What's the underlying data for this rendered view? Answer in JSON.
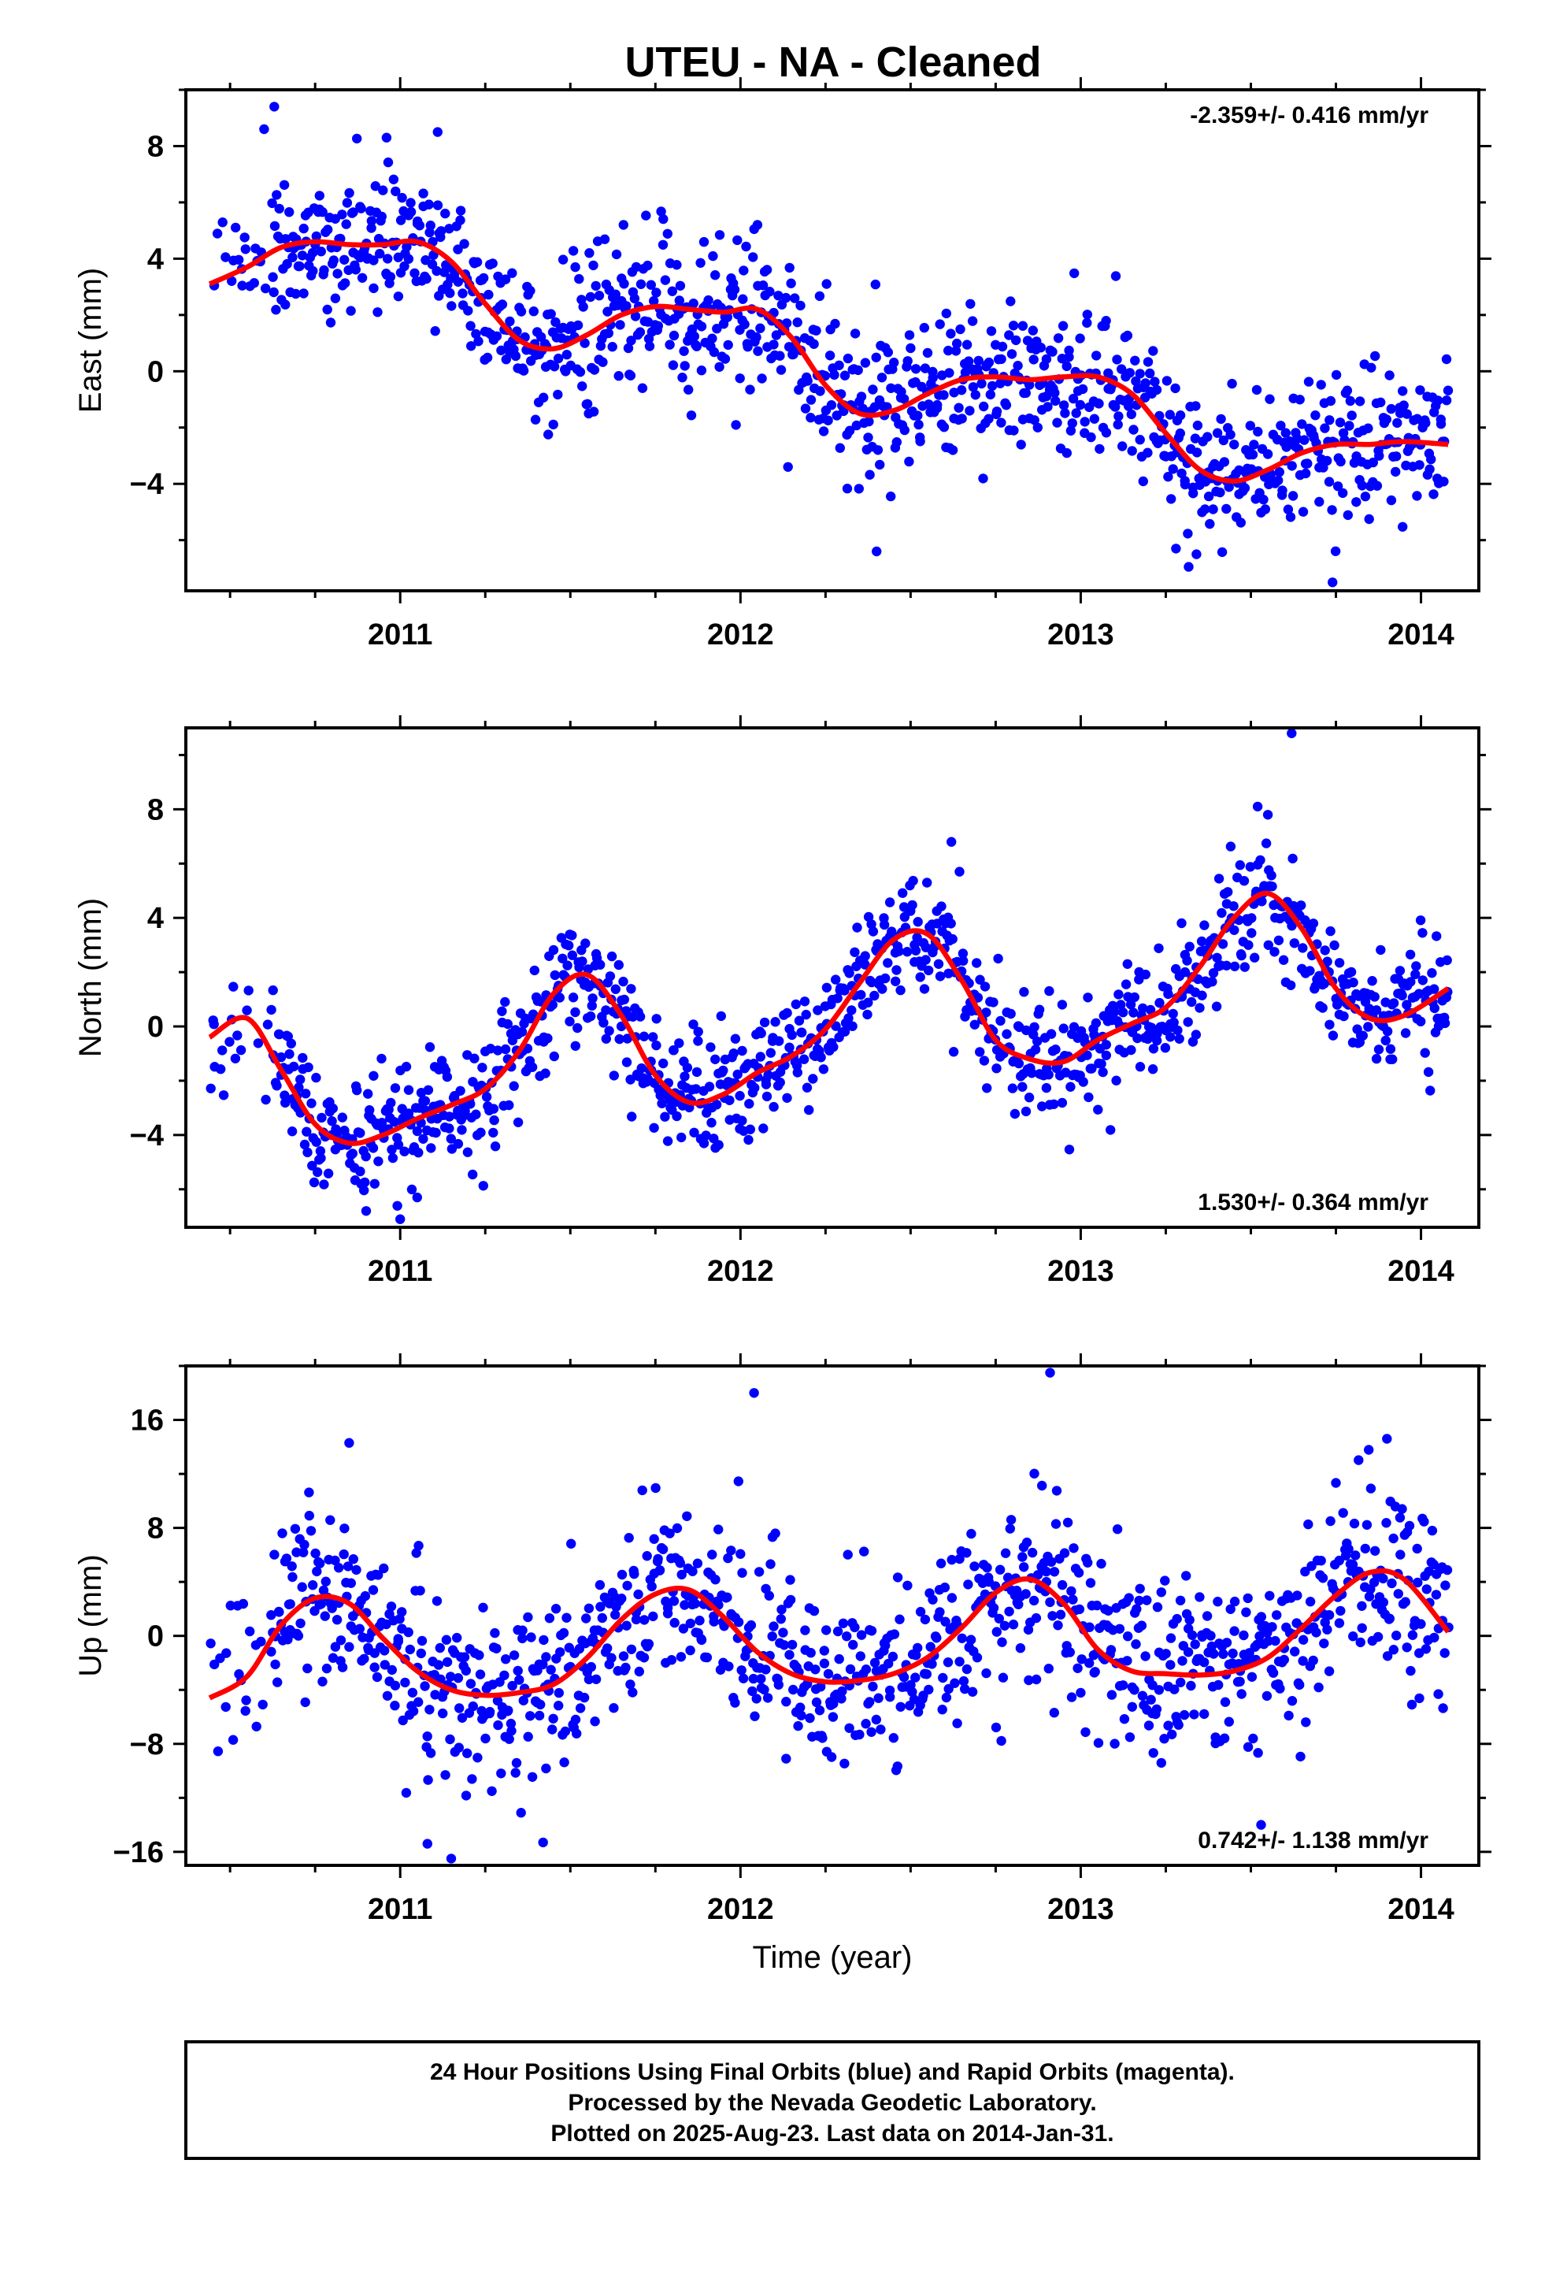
{
  "figure": {
    "title": "UTEU  - NA - Cleaned",
    "footer": [
      "24 Hour Positions Using Final Orbits (blue) and Rapid Orbits (magenta).",
      "Processed by the Nevada Geodetic Laboratory.",
      "Plotted on 2025-Aug-23. Last data on 2014-Jan-31."
    ],
    "colors": {
      "points": "#0000ff",
      "fit": "#ff0000",
      "frame": "#000000"
    }
  },
  "chart_data": [
    {
      "type": "scatter",
      "ylabel": "East (mm)",
      "xlabel": "",
      "xlim": [
        2010.37,
        2014.17
      ],
      "ylim": [
        -7.8,
        10.0
      ],
      "xticks": [
        2011,
        2012,
        2013,
        2014
      ],
      "yticks": [
        -4,
        0,
        4,
        8
      ],
      "rate_label": "-2.359+/- 0.416 mm/yr",
      "rate_position": "top-right",
      "data_range": [
        2010.44,
        2014.08
      ],
      "point_count": 1100,
      "scatter_sd": 1.3,
      "outliers": [
        [
          2010.63,
          9.4
        ],
        [
          2010.6,
          8.6
        ],
        [
          2011.11,
          8.5
        ],
        [
          2010.96,
          8.3
        ],
        [
          2012.05,
          5.2
        ],
        [
          2013.74,
          -7.5
        ],
        [
          2013.34,
          -6.5
        ],
        [
          2012.4,
          -6.4
        ],
        [
          2013.28,
          -6.3
        ]
      ],
      "fit_curve": {
        "x": [
          2010.44,
          2010.55,
          2010.65,
          2010.75,
          2010.85,
          2010.95,
          2011.05,
          2011.15,
          2011.25,
          2011.35,
          2011.45,
          2011.55,
          2011.65,
          2011.75,
          2011.85,
          2011.95,
          2012.05,
          2012.15,
          2012.25,
          2012.35,
          2012.45,
          2012.55,
          2012.65,
          2012.75,
          2012.85,
          2012.95,
          2013.05,
          2013.15,
          2013.25,
          2013.35,
          2013.45,
          2013.55,
          2013.65,
          2013.75,
          2013.85,
          2013.95,
          2014.08
        ],
        "y": [
          3.1,
          3.7,
          4.4,
          4.6,
          4.5,
          4.5,
          4.6,
          3.9,
          2.4,
          1.1,
          0.8,
          1.3,
          2.0,
          2.3,
          2.2,
          2.1,
          2.2,
          1.2,
          -0.5,
          -1.5,
          -1.4,
          -0.8,
          -0.3,
          -0.2,
          -0.3,
          -0.2,
          -0.2,
          -0.8,
          -2.2,
          -3.5,
          -3.9,
          -3.5,
          -2.9,
          -2.6,
          -2.6,
          -2.5,
          -2.6
        ]
      }
    },
    {
      "type": "scatter",
      "ylabel": "North (mm)",
      "xlabel": "",
      "xlim": [
        2010.37,
        2014.17
      ],
      "ylim": [
        -7.4,
        11.0
      ],
      "xticks": [
        2011,
        2012,
        2013,
        2014
      ],
      "yticks": [
        -4,
        0,
        4,
        8
      ],
      "rate_label": "1.530+/- 0.364 mm/yr",
      "rate_position": "bottom-right",
      "data_range": [
        2010.44,
        2014.08
      ],
      "point_count": 1100,
      "scatter_sd": 1.1,
      "outliers": [
        [
          2013.62,
          10.8
        ],
        [
          2013.52,
          8.1
        ],
        [
          2013.55,
          7.8
        ],
        [
          2011.0,
          -7.1
        ],
        [
          2010.9,
          -6.8
        ],
        [
          2012.62,
          6.8
        ],
        [
          2011.05,
          -6.3
        ]
      ],
      "fit_curve": {
        "x": [
          2010.44,
          2010.55,
          2010.65,
          2010.75,
          2010.85,
          2010.95,
          2011.05,
          2011.15,
          2011.25,
          2011.35,
          2011.45,
          2011.55,
          2011.65,
          2011.75,
          2011.85,
          2011.95,
          2012.05,
          2012.15,
          2012.25,
          2012.35,
          2012.45,
          2012.55,
          2012.65,
          2012.75,
          2012.85,
          2012.95,
          2013.05,
          2013.15,
          2013.25,
          2013.35,
          2013.45,
          2013.55,
          2013.65,
          2013.75,
          2013.85,
          2013.95,
          2014.08
        ],
        "y": [
          -0.4,
          0.3,
          -1.6,
          -3.6,
          -4.3,
          -4.0,
          -3.4,
          -2.9,
          -2.3,
          -0.9,
          1.2,
          1.9,
          0.4,
          -1.8,
          -2.8,
          -2.5,
          -1.7,
          -1.1,
          -0.1,
          1.6,
          3.2,
          3.4,
          1.7,
          -0.5,
          -1.2,
          -1.3,
          -0.5,
          0.1,
          0.7,
          2.2,
          4.0,
          4.9,
          3.6,
          1.4,
          0.3,
          0.4,
          1.4
        ]
      }
    },
    {
      "type": "scatter",
      "ylabel": "Up (mm)",
      "xlabel": "Time (year)",
      "xlim": [
        2010.37,
        2014.17
      ],
      "ylim": [
        -17.0,
        20.0
      ],
      "xticks": [
        2011,
        2012,
        2013,
        2014
      ],
      "yticks": [
        -16,
        -8,
        0,
        8,
        16
      ],
      "rate_label": "0.742+/- 1.138 mm/yr",
      "rate_position": "bottom-right",
      "data_range": [
        2010.44,
        2014.08
      ],
      "point_count": 1100,
      "scatter_sd": 3.4,
      "outliers": [
        [
          2012.91,
          19.5
        ],
        [
          2012.04,
          18.0
        ],
        [
          2011.15,
          -16.5
        ],
        [
          2011.08,
          -15.4
        ],
        [
          2013.53,
          -14.0
        ],
        [
          2010.85,
          14.3
        ],
        [
          2013.9,
          14.6
        ],
        [
          2011.42,
          -15.3
        ]
      ],
      "fit_curve": {
        "x": [
          2010.44,
          2010.55,
          2010.65,
          2010.75,
          2010.85,
          2010.95,
          2011.05,
          2011.15,
          2011.25,
          2011.35,
          2011.45,
          2011.55,
          2011.65,
          2011.75,
          2011.85,
          2011.95,
          2012.05,
          2012.15,
          2012.25,
          2012.35,
          2012.45,
          2012.55,
          2012.65,
          2012.75,
          2012.85,
          2012.95,
          2013.05,
          2013.15,
          2013.25,
          2013.35,
          2013.45,
          2013.55,
          2013.65,
          2013.75,
          2013.85,
          2013.95,
          2014.08
        ],
        "y": [
          -4.6,
          -3.0,
          0.8,
          2.8,
          2.4,
          -0.2,
          -2.6,
          -4.0,
          -4.4,
          -4.2,
          -3.6,
          -1.6,
          1.2,
          3.1,
          3.4,
          1.4,
          -1.2,
          -2.8,
          -3.4,
          -3.3,
          -2.8,
          -1.6,
          0.6,
          3.2,
          4.2,
          2.4,
          -1.0,
          -2.6,
          -2.8,
          -2.9,
          -2.6,
          -1.6,
          0.6,
          3.0,
          4.7,
          4.2,
          0.3
        ]
      }
    }
  ]
}
